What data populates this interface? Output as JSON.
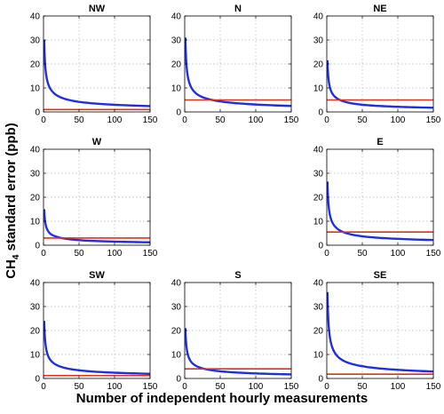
{
  "figure": {
    "ylabel_prefix": "CH",
    "ylabel_sub": "4",
    "ylabel_suffix": " standard error (ppb)",
    "xlabel": "Number of independent hourly measurements"
  },
  "colors": {
    "curve": "#1f2fe0",
    "threshold": "#e0301e",
    "grid": "#b5b5b5",
    "axis": "#000000"
  },
  "chart_data": [
    {
      "type": "line",
      "title": "NW",
      "xlim": [
        0,
        150
      ],
      "ylim": [
        0,
        40
      ],
      "xticks": [
        0,
        50,
        100,
        150
      ],
      "yticks": [
        0,
        10,
        20,
        30,
        40
      ],
      "grid": true,
      "series": [
        {
          "x": [
            1,
            2,
            3,
            5,
            10,
            20,
            50,
            100,
            150
          ],
          "y": [
            30,
            21.2,
            17.3,
            13.4,
            9.5,
            6.7,
            4.2,
            3.0,
            2.45
          ]
        },
        {
          "x": [
            0,
            150
          ],
          "y": [
            1,
            1
          ]
        }
      ]
    },
    {
      "type": "line",
      "title": "N",
      "xlim": [
        0,
        150
      ],
      "ylim": [
        0,
        40
      ],
      "xticks": [
        0,
        50,
        100,
        150
      ],
      "yticks": [
        0,
        10,
        20,
        30,
        40
      ],
      "grid": true,
      "series": [
        {
          "x": [
            1,
            2,
            3,
            5,
            10,
            20,
            50,
            100,
            150
          ],
          "y": [
            31,
            21.9,
            17.9,
            13.9,
            9.8,
            6.9,
            4.4,
            3.1,
            2.5
          ]
        },
        {
          "x": [
            0,
            150
          ],
          "y": [
            5,
            5
          ]
        }
      ]
    },
    {
      "type": "line",
      "title": "NE",
      "xlim": [
        0,
        150
      ],
      "ylim": [
        0,
        40
      ],
      "xticks": [
        0,
        50,
        100,
        150
      ],
      "yticks": [
        0,
        10,
        20,
        30,
        40
      ],
      "grid": true,
      "series": [
        {
          "x": [
            1,
            2,
            3,
            5,
            10,
            20,
            50,
            100,
            150
          ],
          "y": [
            21.5,
            15.2,
            12.4,
            9.6,
            6.8,
            4.8,
            3.0,
            2.15,
            1.75
          ]
        },
        {
          "x": [
            0,
            150
          ],
          "y": [
            5,
            5
          ]
        }
      ]
    },
    {
      "type": "line",
      "title": "W",
      "xlim": [
        0,
        150
      ],
      "ylim": [
        0,
        40
      ],
      "xticks": [
        0,
        50,
        100,
        150
      ],
      "yticks": [
        0,
        10,
        20,
        30,
        40
      ],
      "grid": true,
      "series": [
        {
          "x": [
            1,
            2,
            3,
            5,
            10,
            20,
            50,
            100,
            150
          ],
          "y": [
            15,
            10.6,
            8.7,
            6.7,
            4.7,
            3.4,
            2.1,
            1.5,
            1.2
          ]
        },
        {
          "x": [
            0,
            150
          ],
          "y": [
            3,
            3
          ]
        }
      ]
    },
    {
      "type": "line",
      "title": "E",
      "xlim": [
        0,
        150
      ],
      "ylim": [
        0,
        40
      ],
      "xticks": [
        0,
        50,
        100,
        150
      ],
      "yticks": [
        0,
        10,
        20,
        30,
        40
      ],
      "grid": true,
      "series": [
        {
          "x": [
            1,
            2,
            3,
            5,
            10,
            20,
            50,
            100,
            150
          ],
          "y": [
            26.5,
            18.7,
            15.3,
            11.9,
            8.4,
            5.9,
            3.7,
            2.65,
            2.15
          ]
        },
        {
          "x": [
            0,
            150
          ],
          "y": [
            5.5,
            5.5
          ]
        }
      ]
    },
    {
      "type": "line",
      "title": "SW",
      "xlim": [
        0,
        150
      ],
      "ylim": [
        0,
        40
      ],
      "xticks": [
        0,
        50,
        100,
        150
      ],
      "yticks": [
        0,
        10,
        20,
        30,
        40
      ],
      "grid": true,
      "series": [
        {
          "x": [
            1,
            2,
            3,
            5,
            10,
            20,
            50,
            100,
            150
          ],
          "y": [
            24,
            17,
            13.9,
            10.7,
            7.6,
            5.4,
            3.4,
            2.4,
            1.95
          ]
        },
        {
          "x": [
            0,
            150
          ],
          "y": [
            1.2,
            1.2
          ]
        }
      ]
    },
    {
      "type": "line",
      "title": "S",
      "xlim": [
        0,
        150
      ],
      "ylim": [
        0,
        40
      ],
      "xticks": [
        0,
        50,
        100,
        150
      ],
      "yticks": [
        0,
        10,
        20,
        30,
        40
      ],
      "grid": true,
      "series": [
        {
          "x": [
            1,
            2,
            3,
            5,
            10,
            20,
            50,
            100,
            150
          ],
          "y": [
            21,
            14.8,
            12.1,
            9.4,
            6.6,
            4.7,
            3.0,
            2.1,
            1.7
          ]
        },
        {
          "x": [
            0,
            150
          ],
          "y": [
            4,
            4
          ]
        }
      ]
    },
    {
      "type": "line",
      "title": "SE",
      "xlim": [
        0,
        150
      ],
      "ylim": [
        0,
        40
      ],
      "xticks": [
        0,
        50,
        100,
        150
      ],
      "yticks": [
        0,
        10,
        20,
        30,
        40
      ],
      "grid": true,
      "series": [
        {
          "x": [
            1,
            2,
            3,
            5,
            10,
            20,
            50,
            100,
            150
          ],
          "y": [
            36,
            25.5,
            20.8,
            16.1,
            11.4,
            8.0,
            5.1,
            3.6,
            2.9
          ]
        },
        {
          "x": [
            0,
            150
          ],
          "y": [
            1.8,
            1.8
          ]
        }
      ]
    }
  ]
}
